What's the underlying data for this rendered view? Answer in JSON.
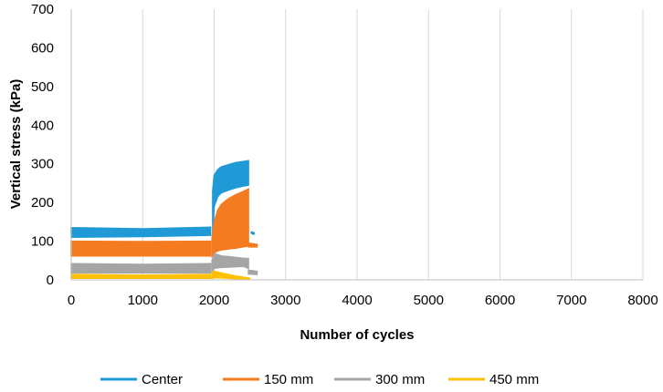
{
  "chart_data": {
    "type": "area",
    "xlabel": "Number of cycles",
    "ylabel": "Vertical stress (kPa)",
    "xlim": [
      0,
      8000
    ],
    "ylim": [
      0,
      700
    ],
    "x_ticks": [
      "0",
      "1000",
      "2000",
      "3000",
      "4000",
      "5000",
      "6000",
      "7000",
      "8000"
    ],
    "y_ticks": [
      "0",
      "100",
      "200",
      "300",
      "400",
      "500",
      "600",
      "700"
    ],
    "grid": "vertical",
    "legend_position": "bottom",
    "series": [
      {
        "name": "Center",
        "color": "#1f9ad6",
        "bands": [
          {
            "x": [
              0,
              1000,
              1950
            ],
            "lower": [
              110,
              112,
              115
            ],
            "upper": [
              135,
              132,
              136
            ]
          },
          {
            "x": [
              1980,
              2000,
              2050,
              2100,
              2200,
              2300,
              2400,
              2480
            ],
            "lower": [
              115,
              190,
              215,
              225,
              232,
              238,
              242,
              245
            ],
            "upper": [
              230,
              270,
              285,
              292,
              298,
              303,
              306,
              308
            ]
          }
        ],
        "points": [
          [
            2530,
            122
          ],
          [
            2550,
            120
          ]
        ]
      },
      {
        "name": "150 mm",
        "color": "#f47b20",
        "bands": [
          {
            "x": [
              0,
              1000,
              1950
            ],
            "lower": [
              62,
              62,
              62
            ],
            "upper": [
              100,
              99,
              100
            ]
          },
          {
            "x": [
              1970,
              2000,
              2050,
              2100,
              2200,
              2300,
              2400,
              2480
            ],
            "lower": [
              62,
              70,
              75,
              77,
              80,
              82,
              85,
              88
            ],
            "upper": [
              110,
              150,
              180,
              195,
              210,
              220,
              228,
              235
            ]
          },
          {
            "x": [
              2480,
              2600
            ],
            "lower": [
              85,
              85
            ],
            "upper": [
              95,
              92
            ]
          }
        ],
        "points": []
      },
      {
        "name": "300 mm",
        "color": "#a5a5a5",
        "bands": [
          {
            "x": [
              0,
              1000,
              1950
            ],
            "lower": [
              18,
              18,
              18
            ],
            "upper": [
              42,
              40,
              42
            ]
          },
          {
            "x": [
              1970,
              2000,
              2100,
              2200,
              2300,
              2400,
              2480
            ],
            "lower": [
              20,
              30,
              32,
              33,
              34,
              35,
              30
            ],
            "upper": [
              50,
              68,
              62,
              60,
              58,
              56,
              55
            ]
          },
          {
            "x": [
              2480,
              2600
            ],
            "lower": [
              15,
              14
            ],
            "upper": [
              25,
              22
            ]
          }
        ],
        "points": []
      },
      {
        "name": "450 mm",
        "color": "#ffc000",
        "bands": [
          {
            "x": [
              0,
              1000,
              1950
            ],
            "lower": [
              4,
              4,
              4
            ],
            "upper": [
              14,
              12,
              14
            ]
          },
          {
            "x": [
              1970,
              2000,
              2100,
              2200,
              2300,
              2400,
              2500
            ],
            "lower": [
              4,
              6,
              5,
              4,
              3,
              2,
              1
            ],
            "upper": [
              20,
              22,
              18,
              14,
              10,
              7,
              4
            ]
          }
        ],
        "points": []
      }
    ]
  }
}
